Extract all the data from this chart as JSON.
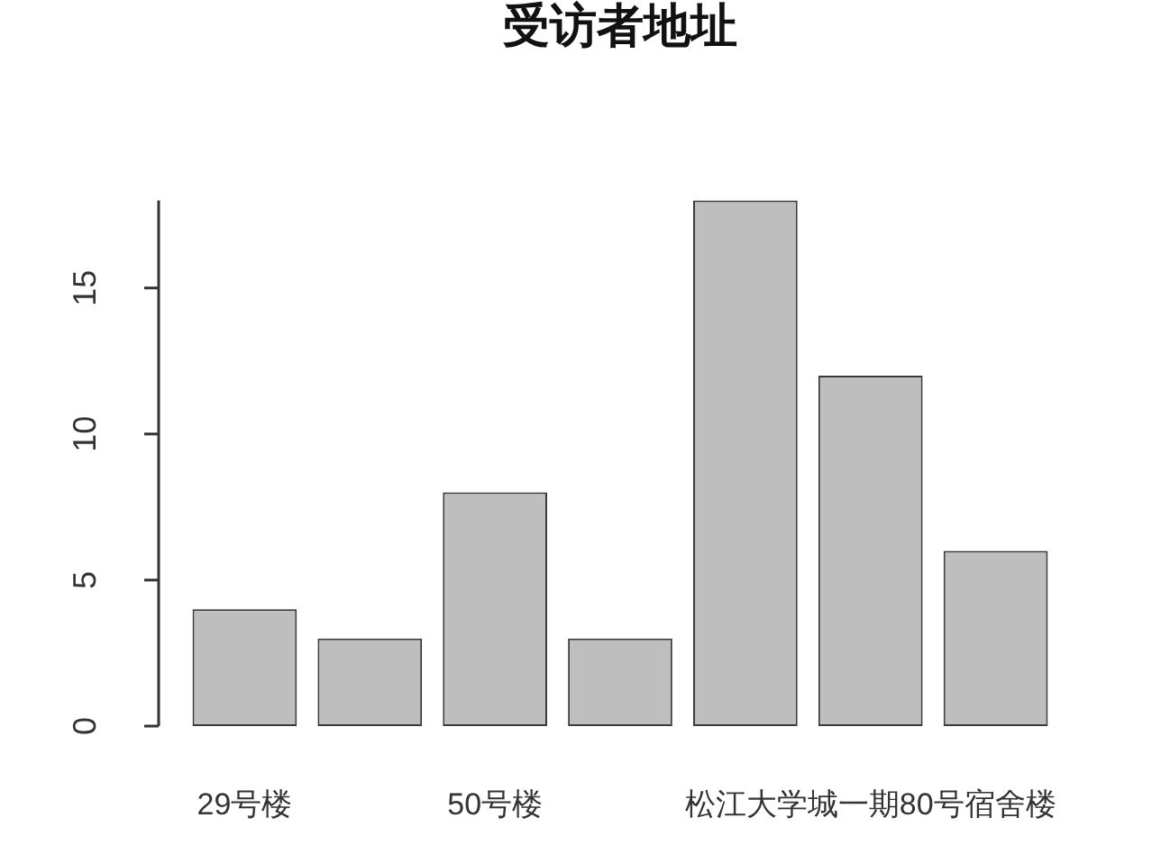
{
  "chart_data": {
    "type": "bar",
    "title": "受访者地址",
    "categories": [
      "29号楼",
      null,
      "50号楼",
      null,
      null,
      "松江大学城一期80号宿舍楼",
      null
    ],
    "values": [
      4,
      3,
      8,
      3,
      18,
      12,
      6
    ],
    "color": "#bebebe",
    "ylim": [
      0,
      18
    ],
    "yticks": [
      0,
      5,
      10,
      15
    ]
  }
}
